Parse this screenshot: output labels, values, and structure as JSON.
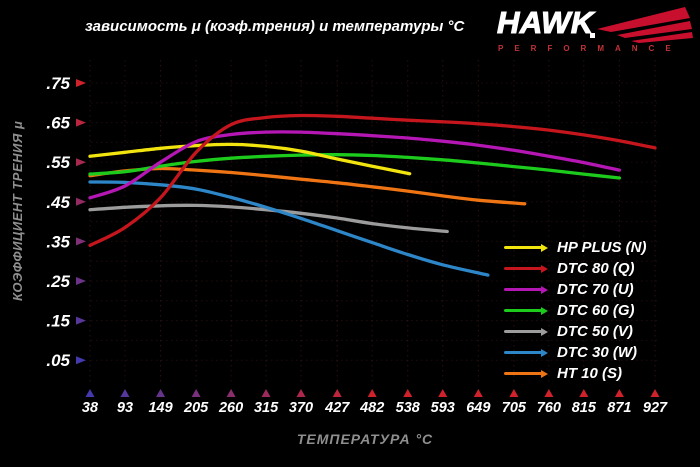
{
  "header": {
    "title": "зависимость μ (коэф.трения) и температуры °C"
  },
  "logo": {
    "brand": "HAWK",
    "sub": "PERFORMANCE",
    "accent": "#c8102e",
    "sub_color": "#c13238"
  },
  "chart_data": {
    "type": "line",
    "title": "зависимость μ (коэф.трения) и температуры °C",
    "xlabel": "ТЕМПЕРАТУРА °C",
    "ylabel": "КОЭФФИЦИЕНТ ТРЕНИЯ μ",
    "x_ticks": [
      38,
      93,
      149,
      205,
      260,
      315,
      370,
      427,
      482,
      538,
      593,
      649,
      705,
      760,
      815,
      871,
      927
    ],
    "y_tick_labels": [
      ".75",
      ".65",
      ".55",
      ".45",
      ".35",
      ".25",
      ".15",
      ".05"
    ],
    "y_tick_values": [
      0.75,
      0.65,
      0.55,
      0.45,
      0.35,
      0.25,
      0.15,
      0.05
    ],
    "xlim": [
      38,
      927
    ],
    "ylim": [
      0.05,
      0.75
    ],
    "grid": true,
    "legend_position": "bottom-right",
    "axis_gradient": {
      "hot": "#d0222b",
      "cold": "#443aae"
    },
    "series": [
      {
        "name": "HP PLUS (N)",
        "color": "#f2e40e",
        "points": [
          [
            38,
            0.565
          ],
          [
            93,
            0.575
          ],
          [
            149,
            0.585
          ],
          [
            205,
            0.592
          ],
          [
            260,
            0.595
          ],
          [
            315,
            0.59
          ],
          [
            370,
            0.578
          ],
          [
            427,
            0.558
          ],
          [
            482,
            0.54
          ],
          [
            541,
            0.521
          ]
        ]
      },
      {
        "name": "DTC 80 (Q)",
        "color": "#c4161c",
        "points": [
          [
            38,
            0.34
          ],
          [
            93,
            0.385
          ],
          [
            149,
            0.46
          ],
          [
            205,
            0.575
          ],
          [
            260,
            0.645
          ],
          [
            315,
            0.663
          ],
          [
            370,
            0.668
          ],
          [
            427,
            0.666
          ],
          [
            482,
            0.661
          ],
          [
            538,
            0.656
          ],
          [
            593,
            0.652
          ],
          [
            649,
            0.647
          ],
          [
            705,
            0.64
          ],
          [
            760,
            0.631
          ],
          [
            815,
            0.619
          ],
          [
            871,
            0.604
          ],
          [
            927,
            0.586
          ]
        ]
      },
      {
        "name": "DTC 70 (U)",
        "color": "#b517b5",
        "points": [
          [
            38,
            0.46
          ],
          [
            93,
            0.49
          ],
          [
            149,
            0.55
          ],
          [
            205,
            0.602
          ],
          [
            260,
            0.62
          ],
          [
            315,
            0.626
          ],
          [
            370,
            0.626
          ],
          [
            427,
            0.622
          ],
          [
            482,
            0.617
          ],
          [
            538,
            0.611
          ],
          [
            593,
            0.603
          ],
          [
            649,
            0.593
          ],
          [
            705,
            0.58
          ],
          [
            760,
            0.565
          ],
          [
            815,
            0.549
          ],
          [
            871,
            0.53
          ]
        ]
      },
      {
        "name": "DTC 60 (G)",
        "color": "#1ccb1c",
        "points": [
          [
            38,
            0.52
          ],
          [
            93,
            0.526
          ],
          [
            149,
            0.54
          ],
          [
            205,
            0.552
          ],
          [
            260,
            0.56
          ],
          [
            315,
            0.565
          ],
          [
            370,
            0.568
          ],
          [
            427,
            0.569
          ],
          [
            482,
            0.567
          ],
          [
            538,
            0.562
          ],
          [
            593,
            0.556
          ],
          [
            649,
            0.548
          ],
          [
            705,
            0.539
          ],
          [
            760,
            0.53
          ],
          [
            815,
            0.52
          ],
          [
            871,
            0.51
          ]
        ]
      },
      {
        "name": "DTC 50 (V)",
        "color": "#9c9c9c",
        "points": [
          [
            38,
            0.43
          ],
          [
            93,
            0.436
          ],
          [
            149,
            0.44
          ],
          [
            205,
            0.441
          ],
          [
            260,
            0.437
          ],
          [
            315,
            0.43
          ],
          [
            370,
            0.421
          ],
          [
            427,
            0.409
          ],
          [
            482,
            0.395
          ],
          [
            538,
            0.384
          ],
          [
            600,
            0.375
          ]
        ]
      },
      {
        "name": "DTC 30 (W)",
        "color": "#2d86c8",
        "points": [
          [
            38,
            0.5
          ],
          [
            93,
            0.499
          ],
          [
            149,
            0.493
          ],
          [
            205,
            0.482
          ],
          [
            260,
            0.461
          ],
          [
            315,
            0.436
          ],
          [
            370,
            0.408
          ],
          [
            427,
            0.377
          ],
          [
            482,
            0.347
          ],
          [
            538,
            0.317
          ],
          [
            593,
            0.291
          ],
          [
            664,
            0.265
          ]
        ]
      },
      {
        "name": "HT 10 (S)",
        "color": "#ee7414",
        "points": [
          [
            38,
            0.516
          ],
          [
            93,
            0.528
          ],
          [
            149,
            0.534
          ],
          [
            205,
            0.53
          ],
          [
            260,
            0.524
          ],
          [
            315,
            0.516
          ],
          [
            370,
            0.507
          ],
          [
            427,
            0.498
          ],
          [
            482,
            0.488
          ],
          [
            538,
            0.477
          ],
          [
            593,
            0.465
          ],
          [
            649,
            0.454
          ],
          [
            722,
            0.445
          ]
        ]
      }
    ]
  }
}
